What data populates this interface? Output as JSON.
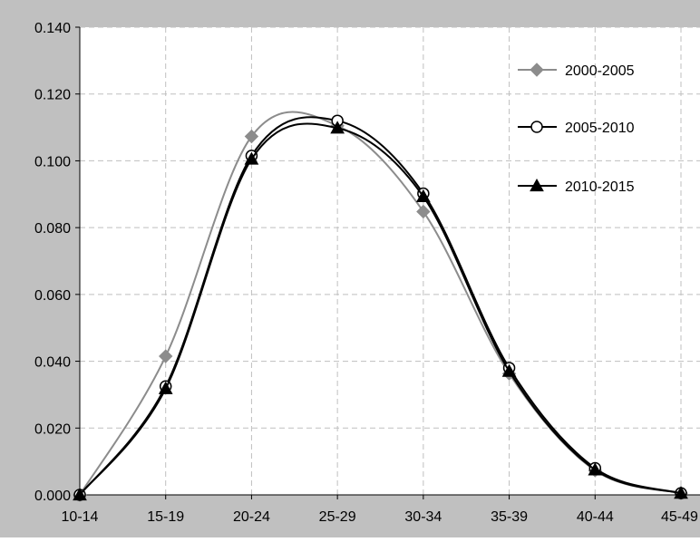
{
  "chart_data": {
    "type": "line",
    "title": "",
    "xlabel": "",
    "ylabel": "",
    "categories": [
      "10-14",
      "15-19",
      "20-24",
      "25-29",
      "30-34",
      "35-39",
      "40-44",
      "45-49"
    ],
    "ylim": [
      0.0,
      0.14
    ],
    "yticks": [
      "0.000",
      "0.020",
      "0.040",
      "0.060",
      "0.080",
      "0.100",
      "0.120",
      "0.140"
    ],
    "grid": true,
    "legend_position": "top-right",
    "series": [
      {
        "name": "2000-2005",
        "marker": "diamond",
        "color": "#8c8c8c",
        "values": [
          0.0,
          0.0415,
          0.1073,
          0.1105,
          0.0848,
          0.0363,
          0.0073,
          0.0005
        ]
      },
      {
        "name": "2005-2010",
        "marker": "circle-open",
        "color": "#000000",
        "values": [
          0.0,
          0.0325,
          0.1015,
          0.112,
          0.0902,
          0.038,
          0.008,
          0.0005
        ]
      },
      {
        "name": "2010-2015",
        "marker": "triangle",
        "color": "#000000",
        "values": [
          0.0,
          0.0318,
          0.1005,
          0.1098,
          0.0893,
          0.037,
          0.0075,
          0.0005
        ]
      }
    ],
    "colors": {
      "plot_background": "#ffffff",
      "chart_border": "#c0c0c0",
      "grid": "#bfbfbf"
    }
  }
}
